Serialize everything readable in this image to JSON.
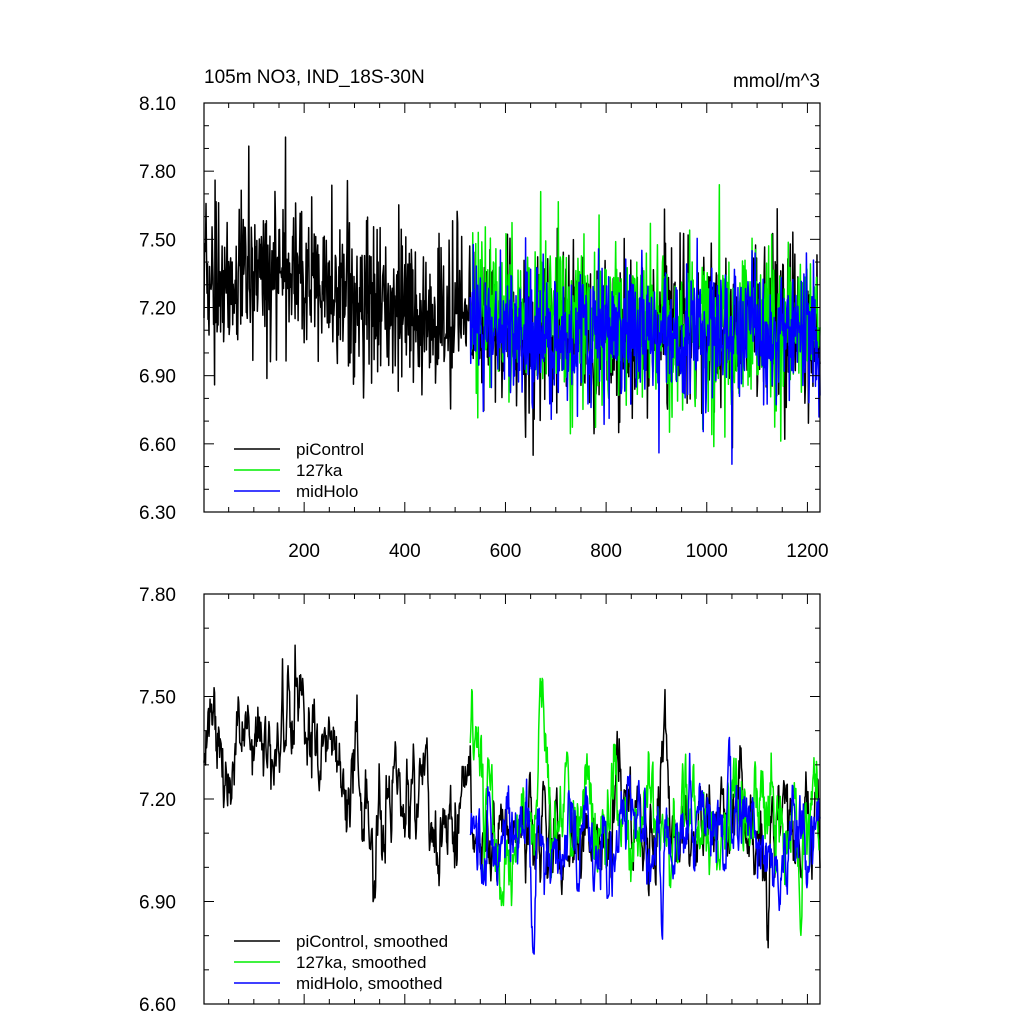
{
  "figure": {
    "title_left": "105m NO3, IND_18S-30N",
    "title_right": "mmol/m^3"
  },
  "colors": {
    "piControl": "#000000",
    "127ka": "#00ee00",
    "midHolo": "#0000ff"
  },
  "chart_data": [
    {
      "type": "line",
      "title": "105m NO3, IND_18S-30N",
      "units": "mmol/m^3",
      "xlabel": "",
      "ylabel": "",
      "xlim": [
        1,
        1225
      ],
      "ylim": [
        6.3,
        8.1
      ],
      "x_ticks": [
        200,
        400,
        600,
        800,
        1000,
        1200
      ],
      "x_tick_labels": [
        "200",
        "400",
        "600",
        "800",
        "1000",
        "1200"
      ],
      "y_ticks": [
        6.3,
        6.6,
        6.9,
        7.2,
        7.5,
        7.8,
        8.1
      ],
      "y_tick_labels": [
        "6.30",
        "6.60",
        "6.90",
        "7.20",
        "7.50",
        "7.80",
        "8.10"
      ],
      "legend": [
        "piControl",
        "127ka",
        "midHolo"
      ],
      "legend_position": "bottom-left",
      "series": [
        {
          "name": "piControl",
          "color": "#000000",
          "x_start": 1,
          "x_end": 1225,
          "approx_trend_x": [
            1,
            100,
            200,
            300,
            400,
            500,
            600,
            700,
            800,
            900,
            1000,
            1100,
            1225
          ],
          "approx_trend_y": [
            7.3,
            7.32,
            7.33,
            7.25,
            7.18,
            7.15,
            7.12,
            7.1,
            7.1,
            7.12,
            7.12,
            7.1,
            7.08
          ],
          "approx_noise_sd": 0.17,
          "approx_peaks": [
            {
              "x": 90,
              "y": 7.91
            },
            {
              "x": 163,
              "y": 7.95
            },
            {
              "x": 655,
              "y": 6.55
            },
            {
              "x": 1155,
              "y": 6.62
            }
          ]
        },
        {
          "name": "127ka",
          "color": "#00ee00",
          "x_start": 530,
          "x_end": 1225,
          "approx_trend_x": [
            530,
            600,
            700,
            800,
            900,
            1000,
            1100,
            1225
          ],
          "approx_trend_y": [
            7.18,
            7.17,
            7.15,
            7.12,
            7.12,
            7.12,
            7.15,
            7.12
          ],
          "approx_noise_sd": 0.17,
          "approx_peaks": [
            {
              "x": 670,
              "y": 7.71
            },
            {
              "x": 1025,
              "y": 7.74
            }
          ]
        },
        {
          "name": "midHolo",
          "color": "#0000ff",
          "x_start": 530,
          "x_end": 1225,
          "approx_trend_x": [
            530,
            600,
            700,
            800,
            900,
            1000,
            1100,
            1225
          ],
          "approx_trend_y": [
            7.15,
            7.1,
            7.08,
            7.08,
            7.08,
            7.1,
            7.1,
            7.08
          ],
          "approx_noise_sd": 0.15,
          "approx_peaks": [
            {
              "x": 1050,
              "y": 6.51
            },
            {
              "x": 905,
              "y": 6.56
            }
          ]
        }
      ]
    },
    {
      "type": "line",
      "title": "",
      "xlabel": "",
      "ylabel": "",
      "xlim": [
        1,
        1225
      ],
      "ylim": [
        6.6,
        7.8
      ],
      "x_ticks": [
        200,
        400,
        600,
        800,
        1000,
        1200
      ],
      "x_tick_labels": [],
      "y_ticks": [
        6.6,
        6.9,
        7.2,
        7.5,
        7.8
      ],
      "y_tick_labels": [
        "6.60",
        "6.90",
        "7.20",
        "7.50",
        "7.80"
      ],
      "legend": [
        "piControl, smoothed",
        "127ka, smoothed",
        "midHolo, smoothed"
      ],
      "legend_position": "bottom-left",
      "series": [
        {
          "name": "piControl, smoothed",
          "color": "#000000",
          "x_start": 1,
          "x_end": 1225,
          "approx_trend_x": [
            1,
            100,
            200,
            300,
            400,
            500,
            600,
            700,
            800,
            900,
            1000,
            1100,
            1225
          ],
          "approx_trend_y": [
            7.33,
            7.35,
            7.34,
            7.24,
            7.2,
            7.18,
            7.12,
            7.1,
            7.1,
            7.12,
            7.12,
            7.1,
            7.08
          ],
          "approx_noise_sd": 0.09,
          "approx_peaks": [
            {
              "x": 182,
              "y": 7.65
            },
            {
              "x": 168,
              "y": 7.59
            },
            {
              "x": 917,
              "y": 7.52
            },
            {
              "x": 340,
              "y": 6.96
            }
          ]
        },
        {
          "name": "127ka, smoothed",
          "color": "#00ee00",
          "x_start": 530,
          "x_end": 1225,
          "approx_trend_x": [
            530,
            600,
            700,
            800,
            900,
            1000,
            1100,
            1225
          ],
          "approx_trend_y": [
            7.22,
            7.18,
            7.15,
            7.13,
            7.12,
            7.12,
            7.15,
            7.12
          ],
          "approx_noise_sd": 0.09,
          "approx_peaks": [
            {
              "x": 533,
              "y": 7.52
            },
            {
              "x": 670,
              "y": 7.5
            },
            {
              "x": 1186,
              "y": 6.82
            }
          ]
        },
        {
          "name": "midHolo, smoothed",
          "color": "#0000ff",
          "x_start": 530,
          "x_end": 1225,
          "approx_trend_x": [
            530,
            600,
            700,
            800,
            900,
            1000,
            1100,
            1225
          ],
          "approx_trend_y": [
            7.1,
            7.08,
            7.07,
            7.07,
            7.08,
            7.1,
            7.1,
            7.08
          ],
          "approx_noise_sd": 0.08,
          "approx_peaks": [
            {
              "x": 655,
              "y": 6.75
            },
            {
              "x": 912,
              "y": 6.79
            },
            {
              "x": 1045,
              "y": 7.38
            }
          ]
        }
      ]
    }
  ]
}
